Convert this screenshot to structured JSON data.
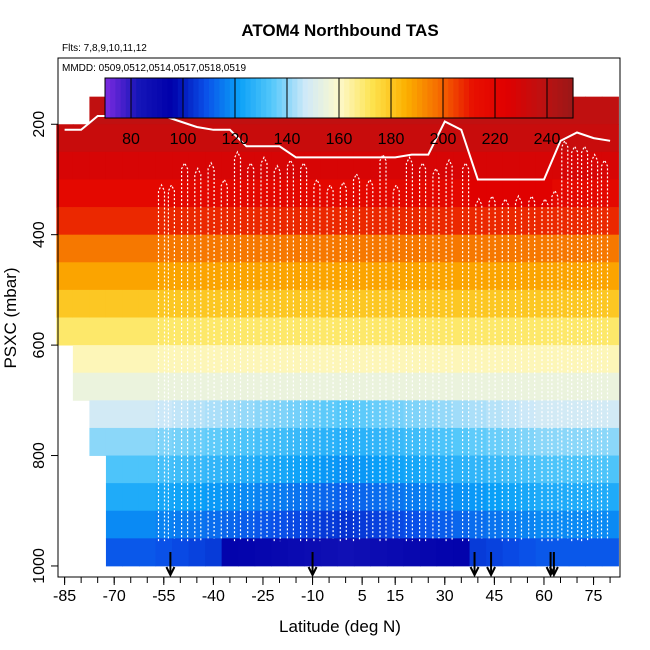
{
  "chart_data": {
    "type": "heatmap",
    "title": "ATOM4 Northbound TAS",
    "flights_label": "Flts: 7,8,9,10,11,12",
    "dates_label": "MMDD: 0509,0512,0514,0517,0518,0519",
    "xlabel": "Latitude (deg N)",
    "ylabel": "PSXC (mbar)",
    "xlim": [
      -87,
      83
    ],
    "ylim": [
      1020,
      80
    ],
    "x_tick_labels": [
      "-85",
      "-70",
      "-55",
      "-40",
      "-25",
      "-10",
      "5",
      "15",
      "30",
      "45",
      "60",
      "75"
    ],
    "x_tick_values": [
      -85,
      -70,
      -55,
      -40,
      -25,
      -10,
      5,
      15,
      30,
      45,
      60,
      75
    ],
    "y_tick_values": [
      200,
      400,
      600,
      800,
      1000
    ],
    "colorbar": {
      "range": [
        70,
        250
      ],
      "tick_values": [
        80,
        100,
        120,
        140,
        160,
        180,
        200,
        220,
        240
      ],
      "colors": [
        "#7d2be0",
        "#1515b8",
        "#0000aa",
        "#0a4fe8",
        "#0aa0f8",
        "#55c8fa",
        "#cfe9f8",
        "#fdf9cc",
        "#fde34e",
        "#fcb000",
        "#f56a00",
        "#e81000",
        "#e00000",
        "#c01010",
        "#9a1818"
      ]
    },
    "levels_mbar": [
      175,
      225,
      275,
      325,
      375,
      425,
      475,
      525,
      575,
      625,
      675,
      725,
      775,
      825,
      875,
      925,
      975
    ],
    "bins_lon": [
      -85,
      -80,
      -75,
      -70,
      -65,
      -60,
      -55,
      -50,
      -45,
      -40,
      -35,
      -30,
      -25,
      -20,
      -15,
      -10,
      -5,
      0,
      5,
      10,
      15,
      20,
      25,
      30,
      35,
      40,
      45,
      50,
      55,
      60,
      65,
      70,
      75,
      80
    ],
    "temperature_profile_K": [
      237,
      234,
      228,
      218,
      208,
      196,
      188,
      180,
      170,
      162,
      155,
      148,
      140,
      133,
      125,
      118,
      110
    ],
    "tropopause_mbar": [
      210,
      210,
      185,
      185,
      185,
      185,
      185,
      195,
      205,
      210,
      210,
      240,
      240,
      240,
      260,
      260,
      260,
      260,
      260,
      260,
      260,
      255,
      255,
      195,
      210,
      300,
      300,
      300,
      300,
      300,
      230,
      215,
      225,
      230
    ],
    "surface_cutoff_mbar": [
      620,
      700,
      800,
      1000,
      1000,
      1000,
      1000,
      1000,
      1000,
      1000,
      1000,
      1000,
      1000,
      1000,
      1000,
      1000,
      1000,
      1000,
      1000,
      1000,
      1000,
      1000,
      1000,
      1000,
      1000,
      1000,
      1000,
      1000,
      1000,
      1000,
      1000,
      1000,
      1000,
      1000
    ],
    "profiles_lat": [
      -56,
      -53,
      -49,
      -45,
      -41,
      -37,
      -33,
      -29,
      -25,
      -21,
      -17,
      -13,
      -9,
      -5,
      -1,
      3,
      7,
      11,
      15,
      19,
      23,
      27,
      31,
      36,
      40,
      44,
      48,
      52,
      56,
      60,
      63,
      66,
      69,
      72,
      75,
      78
    ],
    "profile_bottom_mbar": [
      955,
      950,
      955,
      955,
      950,
      950,
      955,
      955,
      950,
      955,
      950,
      955,
      955,
      950,
      955,
      955,
      950,
      955,
      950,
      955,
      955,
      950,
      955,
      955,
      950,
      950,
      955,
      955,
      950,
      955,
      955,
      950,
      955,
      955,
      950,
      950
    ],
    "profile_top_mbar": [
      310,
      310,
      270,
      280,
      270,
      300,
      250,
      270,
      260,
      275,
      265,
      270,
      300,
      310,
      305,
      290,
      300,
      255,
      310,
      260,
      270,
      280,
      265,
      270,
      335,
      330,
      335,
      330,
      330,
      335,
      320,
      230,
      240,
      240,
      255,
      265
    ],
    "arrows_lat": [
      -53,
      -10,
      39,
      44,
      62,
      63
    ]
  }
}
